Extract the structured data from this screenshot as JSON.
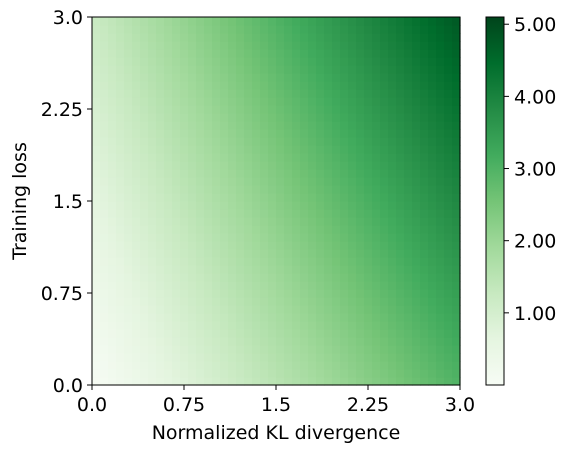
{
  "chart_data": {
    "type": "heatmap",
    "title": "",
    "xlabel": "Normalized KL divergence",
    "ylabel": "Training loss",
    "xlim": [
      0.0,
      3.0
    ],
    "ylim": [
      0.0,
      3.0
    ],
    "x_ticks": [
      0.0,
      0.75,
      1.5,
      2.25,
      3.0
    ],
    "x_tick_labels": [
      "0.0",
      "0.75",
      "1.5",
      "2.25",
      "3.0"
    ],
    "y_ticks": [
      0.0,
      0.75,
      1.5,
      2.25,
      3.0
    ],
    "y_tick_labels": [
      "0.0",
      "0.75",
      "1.5",
      "2.25",
      "3.0"
    ],
    "value_range": [
      0.0,
      5.1
    ],
    "colorbar": {
      "ticks": [
        1.0,
        2.0,
        3.0,
        4.0,
        5.0
      ],
      "tick_labels": [
        "1.00",
        "2.00",
        "3.00",
        "4.00",
        "5.00"
      ],
      "colormap": "Greens"
    },
    "grid": false,
    "value_grid": {
      "x": [
        0.0,
        0.75,
        1.5,
        2.25,
        3.0
      ],
      "y": [
        0.0,
        0.75,
        1.5,
        2.25,
        3.0
      ],
      "z": [
        [
          0.0,
          0.75,
          1.5,
          2.25,
          3.0
        ],
        [
          0.3,
          1.08,
          1.87,
          2.66,
          3.45
        ],
        [
          0.6,
          1.42,
          2.25,
          3.07,
          3.9
        ],
        [
          0.9,
          1.76,
          2.62,
          3.49,
          4.35
        ],
        [
          1.2,
          2.1,
          3.0,
          3.9,
          4.8
        ]
      ]
    }
  },
  "colors": {
    "cmap_stops": [
      "#f7fcf5",
      "#e5f5e0",
      "#c7e9c0",
      "#a1d99b",
      "#74c476",
      "#41ab5d",
      "#238b45",
      "#006d2c",
      "#00441b"
    ]
  }
}
